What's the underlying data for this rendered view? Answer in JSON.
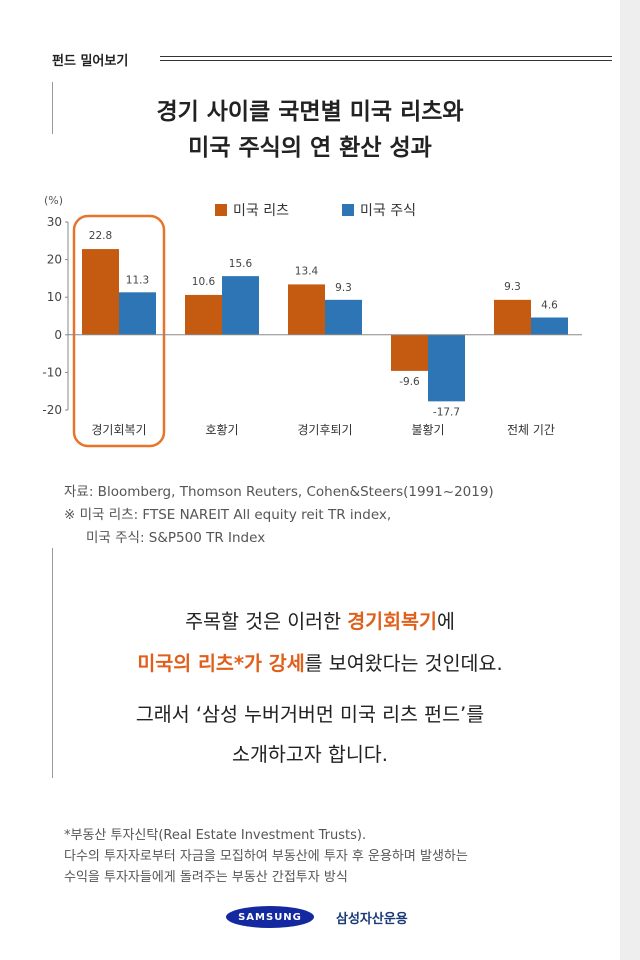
{
  "header": {
    "section_label": "펀드 밀어보기"
  },
  "title": {
    "line1": "경기 사이클 국면별 미국 리츠와",
    "line2": "미국 주식의 연 환산 성과"
  },
  "chart_data": {
    "type": "bar",
    "ylabel": "(%)",
    "ylim": [
      -20,
      30
    ],
    "yticks": [
      30,
      20,
      10,
      0,
      -10,
      -20
    ],
    "categories": [
      "경기회복기",
      "호황기",
      "경기후퇴기",
      "불황기",
      "전체 기간"
    ],
    "series": [
      {
        "name": "미국 리츠",
        "values": [
          22.8,
          10.6,
          13.4,
          -9.6,
          9.3
        ],
        "color": "#c55a11"
      },
      {
        "name": "미국 주식",
        "values": [
          11.3,
          15.6,
          9.3,
          -17.7,
          4.6
        ],
        "color": "#2e75b6"
      }
    ],
    "highlight_category": "경기회복기",
    "highlight_color": "#e8742a",
    "legend": "top-center",
    "grid": false
  },
  "source": {
    "line1": "자료: Bloomberg, Thomson Reuters, Cohen&Steers(1991~2019)",
    "line2": "※ 미국 리츠: FTSE NAREIT All equity reit TR index,",
    "line3": "미국 주식: S&P500 TR Index"
  },
  "body": {
    "p1_a": "주목할 것은 이러한 ",
    "p1_b": "경기회복기",
    "p1_c": "에",
    "p2_a": "미국의 리츠*가 강세",
    "p2_b": "를 보여왔다는 것인데요.",
    "p3": "그래서 ‘삼성 누버거버먼 미국 리츠 펀드’를",
    "p4": "소개하고자 합니다."
  },
  "footnote": {
    "line1": "*부동산 투자신탁(Real Estate Investment Trusts).",
    "line2": "다수의 투자자로부터 자금을 모집하여 부동산에 투자 후 운용하며 발생하는",
    "line3": "수익을 투자자들에게 돌려주는 부동산 간접투자 방식"
  },
  "logos": {
    "samsung": "SAMSUNG",
    "company": "삼성자산운용"
  },
  "colors": {
    "accent": "#e0601b",
    "reit": "#c55a11",
    "stock": "#2e75b6"
  }
}
